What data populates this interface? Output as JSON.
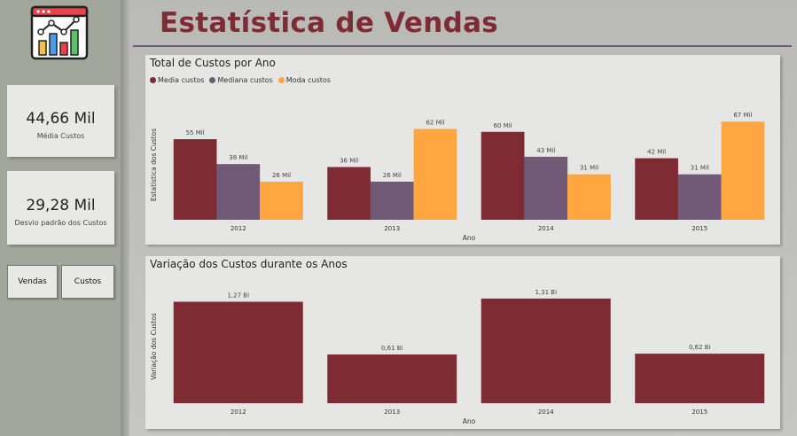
{
  "header": {
    "title": "Estatística de Vendas"
  },
  "kpis": [
    {
      "value": "44,66 Mil",
      "label": "Média Custos"
    },
    {
      "value": "29,28 Mil",
      "label": "Desvio padrão dos Custos"
    }
  ],
  "nav": {
    "vendas_label": "Vendas",
    "custos_label": "Custos"
  },
  "colors": {
    "media": "#7e2b34",
    "mediana": "#705a78",
    "moda": "#ffa640",
    "bar2": "#7e2b34",
    "title": "#7e2b34"
  },
  "chart_data": [
    {
      "type": "bar",
      "title": "Total de Custos por Ano",
      "xlabel": "Ano",
      "ylabel": "Estatística dos Custos",
      "categories": [
        "2012",
        "2013",
        "2014",
        "2015"
      ],
      "series": [
        {
          "name": "Media custos",
          "values": [
            55,
            36,
            60,
            42
          ],
          "labels": [
            "55 Mil",
            "36 Mil",
            "60 Mil",
            "42 Mil"
          ],
          "color": "#7e2b34"
        },
        {
          "name": "Mediana custos",
          "values": [
            38,
            26,
            43,
            31
          ],
          "labels": [
            "38 Mil",
            "26 Mil",
            "43 Mil",
            "31 Mil"
          ],
          "color": "#705a78"
        },
        {
          "name": "Moda custos",
          "values": [
            26,
            62,
            31,
            67
          ],
          "labels": [
            "26 Mil",
            "62 Mil",
            "31 Mil",
            "67 Mil"
          ],
          "color": "#ffa640"
        }
      ],
      "ylim": [
        0,
        75
      ],
      "legend": "top-left",
      "grid": false
    },
    {
      "type": "bar",
      "title": "Variação dos Custos durante os Anos",
      "xlabel": "Ano",
      "ylabel": "Variação dos Custos",
      "categories": [
        "2012",
        "2013",
        "2014",
        "2015"
      ],
      "series": [
        {
          "values": [
            1.27,
            0.61,
            1.31,
            0.62
          ],
          "labels": [
            "1,27 Bi",
            "0,61 Bi",
            "1,31 Bi",
            "0,62 Bi"
          ],
          "color": "#7e2b34"
        }
      ],
      "ylim": [
        0,
        1.42
      ],
      "grid": false
    }
  ]
}
